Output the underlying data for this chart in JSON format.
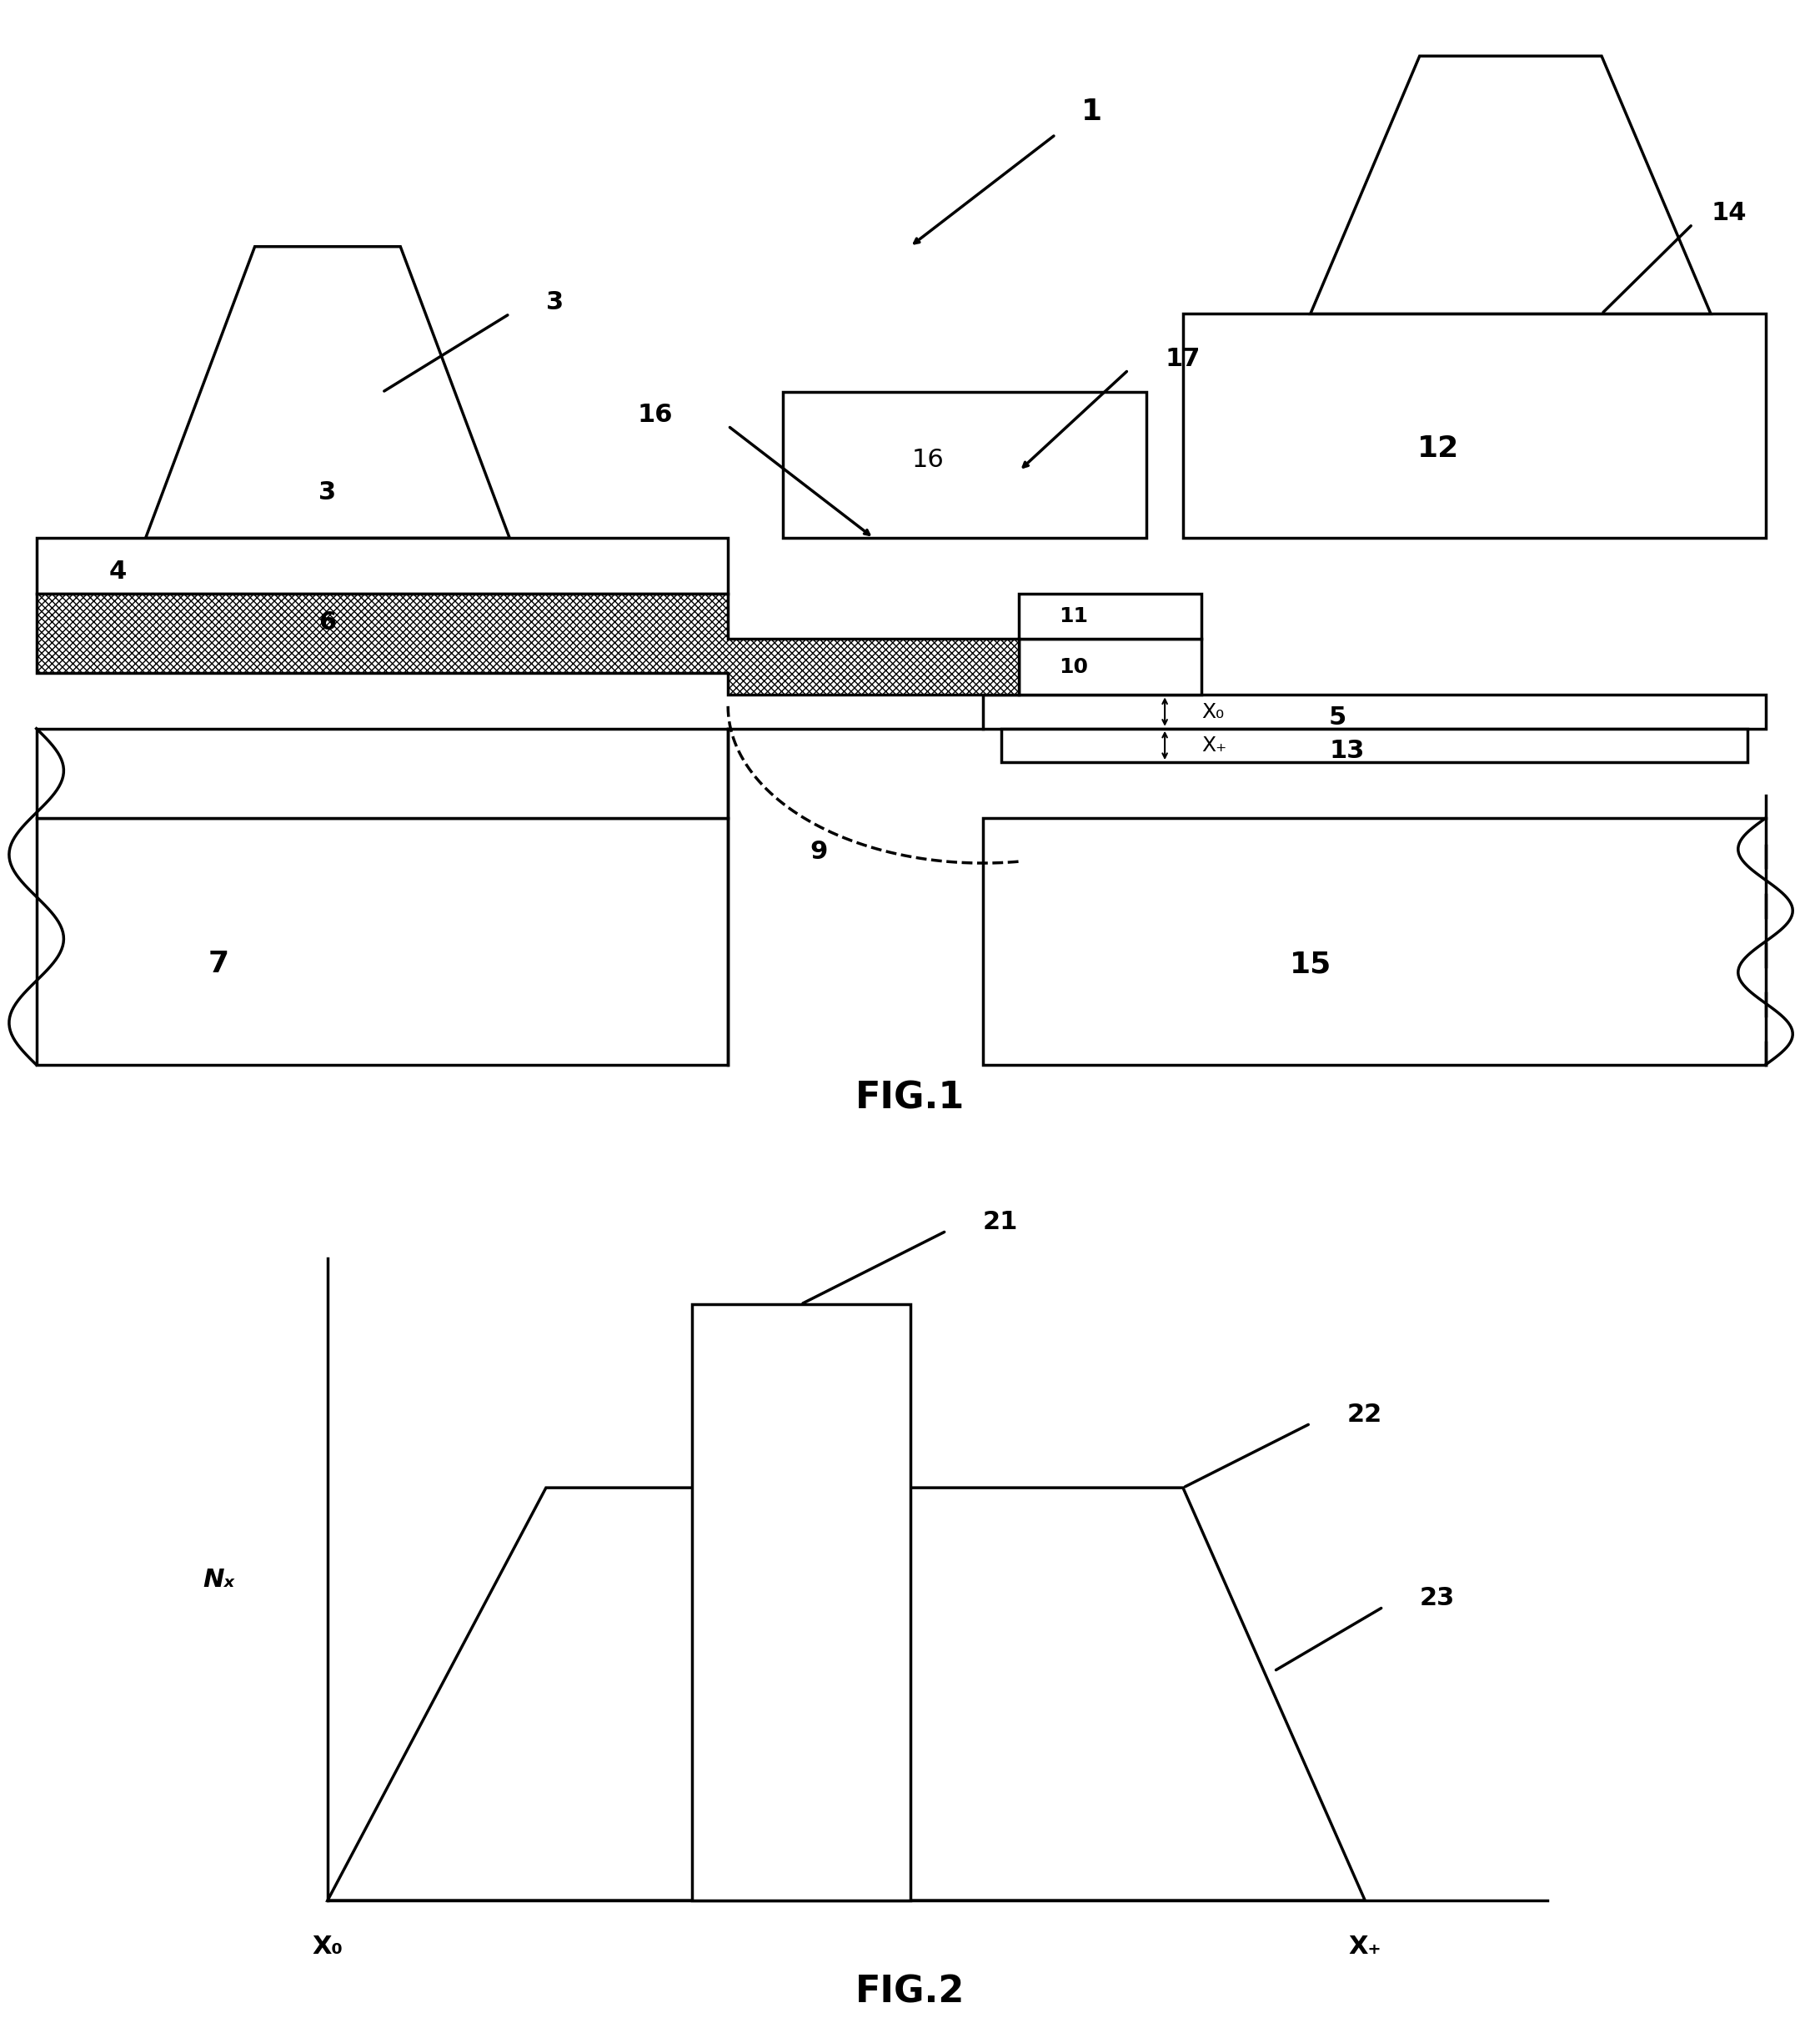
{
  "bg_color": "#ffffff",
  "line_color": "#000000",
  "hatch_color": "#000000",
  "fig_width": 21.83,
  "fig_height": 24.44,
  "fig1_title": "FIG.1",
  "fig2_title": "FIG.2",
  "label_1": "1",
  "label_3": "3",
  "label_4": "4",
  "label_5": "5",
  "label_6": "6",
  "label_7": "7",
  "label_9": "9",
  "label_10": "10",
  "label_11": "11",
  "label_12": "12",
  "label_13": "13",
  "label_14": "14",
  "label_15": "15",
  "label_16": "16",
  "label_17": "17",
  "label_21": "21",
  "label_22": "22",
  "label_23": "23",
  "label_X0": "X₀",
  "label_X+": "X₊",
  "label_Nx": "Nₓ",
  "label_X0_ax": "X₀",
  "label_X+_ax": "X₊"
}
